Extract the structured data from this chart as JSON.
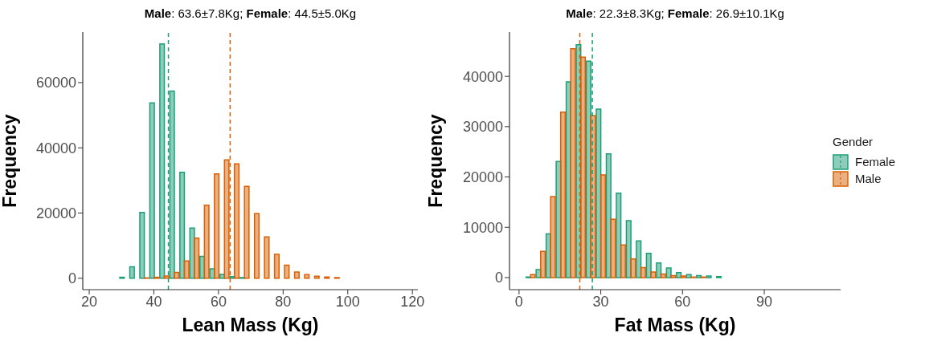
{
  "chart_data": [
    {
      "type": "histogram",
      "title": "Male: 63.6±7.8Kg; Female: 44.5±5.0Kg",
      "xlabel": "Lean Mass (Kg)",
      "ylabel": "Frequency",
      "bins": [
        23.0,
        26.1,
        29.2,
        32.3,
        35.4,
        38.5,
        41.6,
        44.7,
        47.8,
        50.9,
        54.0,
        57.1,
        60.2,
        63.3,
        66.4,
        69.5,
        72.6,
        75.7,
        78.8,
        81.9,
        85.0,
        88.1,
        91.2,
        94.3,
        97.4,
        100.5,
        103.6,
        106.7,
        109.8,
        112.9,
        116.0
      ],
      "series": [
        {
          "color": "#1b9e77",
          "values": [
            0,
            0,
            300,
            3500,
            20200,
            53800,
            71900,
            57400,
            32500,
            15400,
            6700,
            2900,
            1200,
            500,
            200,
            0,
            0,
            0,
            0,
            0,
            0,
            0,
            0,
            0,
            0,
            0,
            0,
            0,
            0,
            0
          ]
        },
        {
          "color": "#d95f02",
          "values": [
            0,
            0,
            0,
            0,
            100,
            300,
            700,
            1800,
            5300,
            12300,
            22400,
            32000,
            36300,
            35100,
            28200,
            19800,
            12700,
            7300,
            4000,
            1900,
            1100,
            600,
            400,
            200,
            0,
            0,
            0,
            0,
            0,
            0
          ]
        }
      ],
      "xlim": [
        18,
        121.7
      ],
      "xticks": [
        20,
        40,
        60,
        80,
        100,
        120
      ],
      "ylim": [
        -3500,
        75500
      ],
      "yticks": [
        0,
        20000,
        40000,
        60000
      ],
      "grid": false,
      "ref_lines": [
        {
          "axis": "x",
          "value": 44.5,
          "color": "#1b9e77",
          "line_style": "dashed"
        },
        {
          "axis": "x",
          "value": 63.6,
          "color": "#d95f02",
          "line_style": "dashed"
        }
      ]
    },
    {
      "type": "histogram",
      "title": "Male: 22.3±8.3Kg; Female: 26.9±10.1Kg",
      "xlabel": "Fat Mass (Kg)",
      "ylabel": "Frequency",
      "legend_title": "Gender",
      "legend": "right",
      "bins": [
        2.3,
        5.98,
        9.66,
        13.34,
        17.02,
        20.7,
        24.38,
        28.06,
        31.74,
        35.42,
        39.1,
        42.78,
        46.46,
        50.14,
        53.82,
        57.5,
        61.18,
        64.86,
        68.54,
        72.22,
        75.9,
        79.58,
        83.26,
        86.94,
        90.62,
        94.3,
        97.98,
        101.66,
        105.34,
        109.02,
        112.7
      ],
      "series": [
        {
          "name": "Female",
          "color": "#1b9e77",
          "values": [
            100,
            1600,
            8700,
            23100,
            38900,
            46300,
            43000,
            33500,
            24600,
            16800,
            11300,
            7300,
            4800,
            2900,
            1900,
            1000,
            600,
            400,
            300,
            200,
            0,
            0,
            0,
            0,
            0,
            0,
            0,
            0,
            0,
            0
          ]
        },
        {
          "name": "Male",
          "color": "#d95f02",
          "values": [
            600,
            5200,
            16100,
            32900,
            45500,
            43800,
            32200,
            20400,
            11600,
            6500,
            3700,
            2000,
            1100,
            700,
            400,
            300,
            100,
            100,
            0,
            0,
            0,
            0,
            0,
            0,
            0,
            0,
            0,
            0,
            0,
            0
          ]
        }
      ],
      "xlim": [
        -3.5,
        118
      ],
      "xticks": [
        0,
        30,
        60,
        90
      ],
      "ylim": [
        -2400,
        48800
      ],
      "yticks": [
        0,
        10000,
        20000,
        30000,
        40000
      ],
      "grid": false,
      "ref_lines": [
        {
          "axis": "x",
          "value": 22.3,
          "color": "#d95f02",
          "line_style": "dashed"
        },
        {
          "axis": "x",
          "value": 26.9,
          "color": "#1b9e77",
          "line_style": "dashed"
        }
      ]
    }
  ]
}
